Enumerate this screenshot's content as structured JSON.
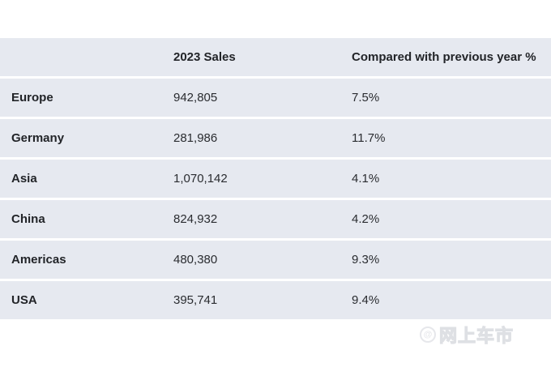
{
  "table": {
    "headers": [
      "",
      "2023 Sales",
      "Compared with previous year %"
    ],
    "rows": [
      {
        "region": "Europe",
        "sales": "942,805",
        "change": "7.5%"
      },
      {
        "region": "Germany",
        "sales": "281,986",
        "change": "11.7%"
      },
      {
        "region": "Asia",
        "sales": "1,070,142",
        "change": "4.1%"
      },
      {
        "region": "China",
        "sales": "824,932",
        "change": "4.2%"
      },
      {
        "region": "Americas",
        "sales": "480,380",
        "change": "9.3%"
      },
      {
        "region": "USA",
        "sales": "395,741",
        "change": "9.4%"
      }
    ]
  },
  "watermark": {
    "icon": "at-sign-icon",
    "text": "网上车市"
  },
  "colors": {
    "row_background": "#e6e9f0",
    "text": "#222428",
    "page_background": "#ffffff"
  }
}
